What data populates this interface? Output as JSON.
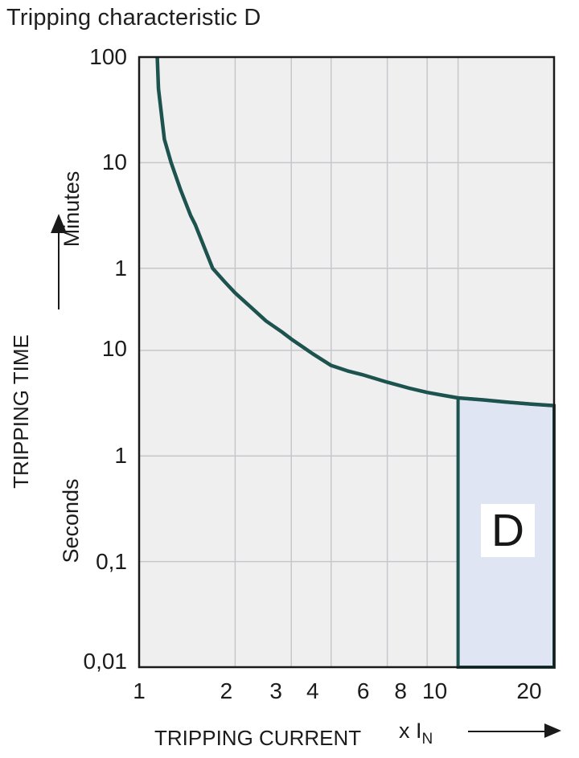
{
  "title": "Tripping characteristic D",
  "colors": {
    "curve": "#1d534f",
    "region_fill": "#dfe5f3",
    "region_border": "#1d534f",
    "plot_bg": "#efefef",
    "grid": "#c7c7cb",
    "axis": "#1a1a1a",
    "text": "#1c1c1c",
    "label_box_bg": "#ffffff"
  },
  "chart_data": {
    "type": "line",
    "title": "Tripping characteristic D",
    "xlabel": "TRIPPING CURRENT",
    "ylabel": "TRIPPING TIME",
    "grid": true,
    "x_axis": {
      "scale": "log",
      "min": 1,
      "max": 20,
      "unit_label": "x I",
      "unit_sub": "N",
      "ticks": [
        {
          "value": 1,
          "label": "1"
        },
        {
          "value": 2,
          "label": "2"
        },
        {
          "value": 3,
          "label": "3"
        },
        {
          "value": 4,
          "label": "4"
        },
        {
          "value": 6,
          "label": "6"
        },
        {
          "value": 8,
          "label": "8"
        },
        {
          "value": 10,
          "label": "10"
        },
        {
          "value": 20,
          "label": "20"
        }
      ]
    },
    "y_axis": {
      "scale": "log",
      "unit": "seconds",
      "t_min": 0.01,
      "t_max": 6000,
      "minutes_label": "Minutes",
      "seconds_label": "Seconds",
      "ticks": [
        {
          "seconds": 6000,
          "label": "100"
        },
        {
          "seconds": 600,
          "label": "10"
        },
        {
          "seconds": 60,
          "label": "1"
        },
        {
          "seconds": 10,
          "label": "10"
        },
        {
          "seconds": 1,
          "label": "1"
        },
        {
          "seconds": 0.1,
          "label": "0,1"
        },
        {
          "seconds": 0.01,
          "label": "0,01"
        }
      ]
    },
    "series": [
      {
        "name": "D tripping characteristic curve",
        "points": [
          [
            1.14,
            6000
          ],
          [
            1.15,
            3000
          ],
          [
            1.2,
            1000
          ],
          [
            1.26,
            600
          ],
          [
            1.35,
            330
          ],
          [
            1.45,
            190
          ],
          [
            1.5,
            155
          ],
          [
            1.6,
            95
          ],
          [
            1.7,
            60
          ],
          [
            1.85,
            45
          ],
          [
            2,
            35
          ],
          [
            2.2,
            27
          ],
          [
            2.5,
            19
          ],
          [
            2.8,
            15
          ],
          [
            3,
            12.8
          ],
          [
            3.5,
            9.3
          ],
          [
            4,
            7.2
          ],
          [
            4.5,
            6.4
          ],
          [
            5,
            5.9
          ],
          [
            6,
            5
          ],
          [
            7,
            4.4
          ],
          [
            8,
            4
          ],
          [
            9,
            3.75
          ],
          [
            10,
            3.55
          ],
          [
            12,
            3.4
          ],
          [
            14,
            3.25
          ],
          [
            17,
            3.1
          ],
          [
            20,
            3
          ]
        ]
      }
    ],
    "region": {
      "label": "D",
      "x_from": 10,
      "x_to": 20,
      "t_from": 0.01
    }
  }
}
